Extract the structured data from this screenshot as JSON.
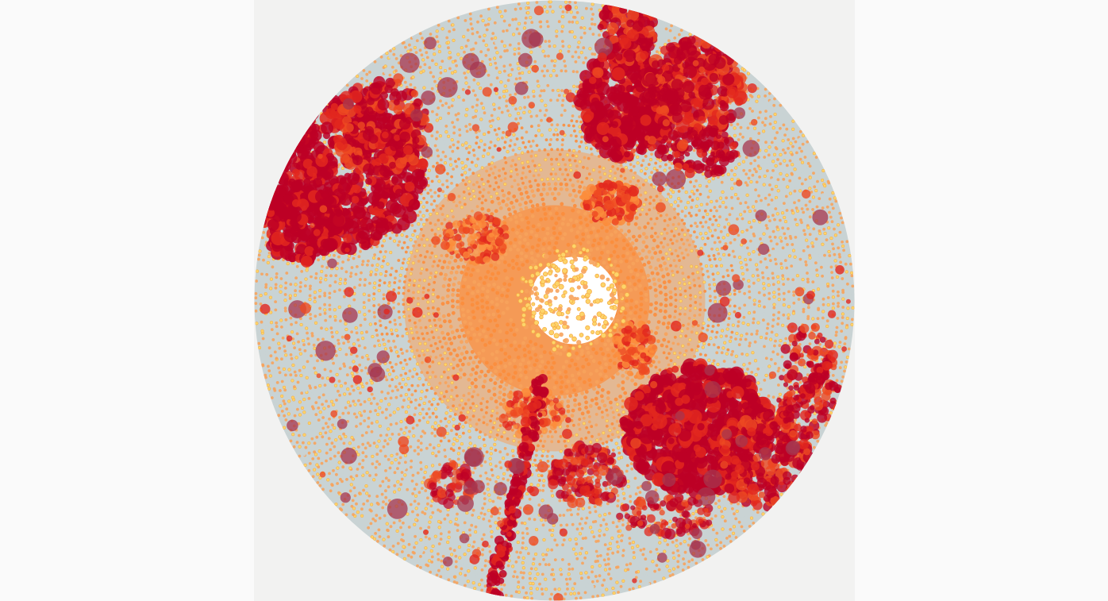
{
  "visualization": {
    "type": "radial-dot-map",
    "colors": {
      "page_background": "#fafafa",
      "panel_background": "#f2f2f1",
      "disc_background": "#c9d3d4",
      "center_background": "#ffffff",
      "dot_yellow": "#fdd46a",
      "dot_yellow_outline": "#f5a742",
      "dot_light_orange": "#f7a35c",
      "dot_orange": "#fc8d3c",
      "dot_red_orange": "#ee4a22",
      "dot_red": "#e2271e",
      "dot_crimson": "#bd0026",
      "dot_plum": "#a6364f"
    },
    "legend": []
  }
}
